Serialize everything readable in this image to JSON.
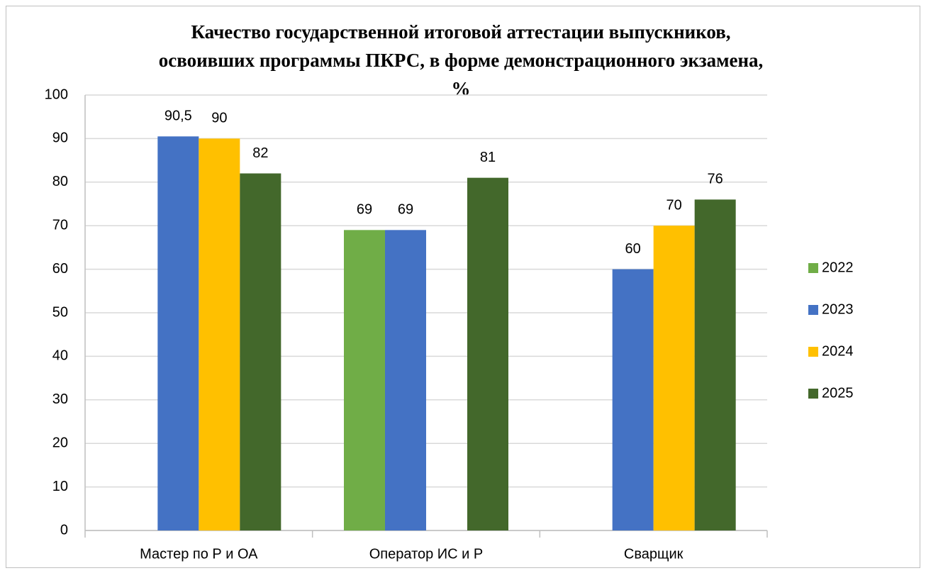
{
  "chart_data": {
    "type": "bar",
    "title": [
      "Качество государственной итоговой аттестации выпускников,",
      "освоивших программы ПКРС, в форме демонстрационного экзамена,",
      "%"
    ],
    "categories": [
      "Мастер по Р и ОА",
      "Оператор ИС и Р",
      "Сварщик"
    ],
    "series": [
      {
        "name": "2022",
        "color": "#70ad47",
        "values": [
          null,
          69,
          null
        ]
      },
      {
        "name": "2023",
        "color": "#4472c4",
        "values": [
          90.5,
          69,
          60
        ],
        "value_labels": [
          "90,5",
          "69",
          "60"
        ]
      },
      {
        "name": "2024",
        "color": "#ffc000",
        "values": [
          90,
          null,
          70
        ]
      },
      {
        "name": "2025",
        "color": "#43682b",
        "values": [
          82,
          81,
          76
        ]
      }
    ],
    "ylim": [
      0,
      100
    ],
    "yticks": [
      0,
      10,
      20,
      30,
      40,
      50,
      60,
      70,
      80,
      90,
      100
    ],
    "grid": true,
    "legend": "right"
  }
}
